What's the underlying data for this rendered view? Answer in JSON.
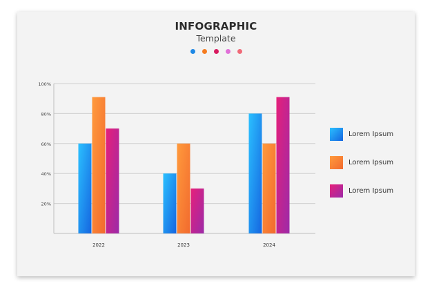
{
  "header": {
    "title": "INFOGRAPHIC",
    "subtitle": "Template",
    "dot_colors": [
      "#1e88e5",
      "#f57c20",
      "#d81b60",
      "#e070d8",
      "#f06a78"
    ]
  },
  "chart_data": {
    "type": "bar",
    "title": "INFOGRAPHIC",
    "subtitle": "Template",
    "xlabel": "",
    "ylabel": "",
    "categories": [
      "2022",
      "2023",
      "2024"
    ],
    "ylim": [
      0,
      100
    ],
    "yticks": [
      20,
      40,
      60,
      80,
      100
    ],
    "ytick_labels": [
      "20%",
      "40%",
      "60%",
      "80%",
      "100%"
    ],
    "grid": true,
    "series": [
      {
        "name": "Lorem Ipsum",
        "values": [
          60,
          40,
          80
        ],
        "color_top": "#2bc0ff",
        "color_bottom": "#1565e0"
      },
      {
        "name": "Lorem Ipsum",
        "values": [
          91,
          60,
          60
        ],
        "color_top": "#ff9a3c",
        "color_bottom": "#f26a2e"
      },
      {
        "name": "Lorem Ipsum",
        "values": [
          70,
          30,
          91
        ],
        "color_top": "#e6207a",
        "color_bottom": "#9c2aa8"
      }
    ],
    "legend_position": "right"
  }
}
